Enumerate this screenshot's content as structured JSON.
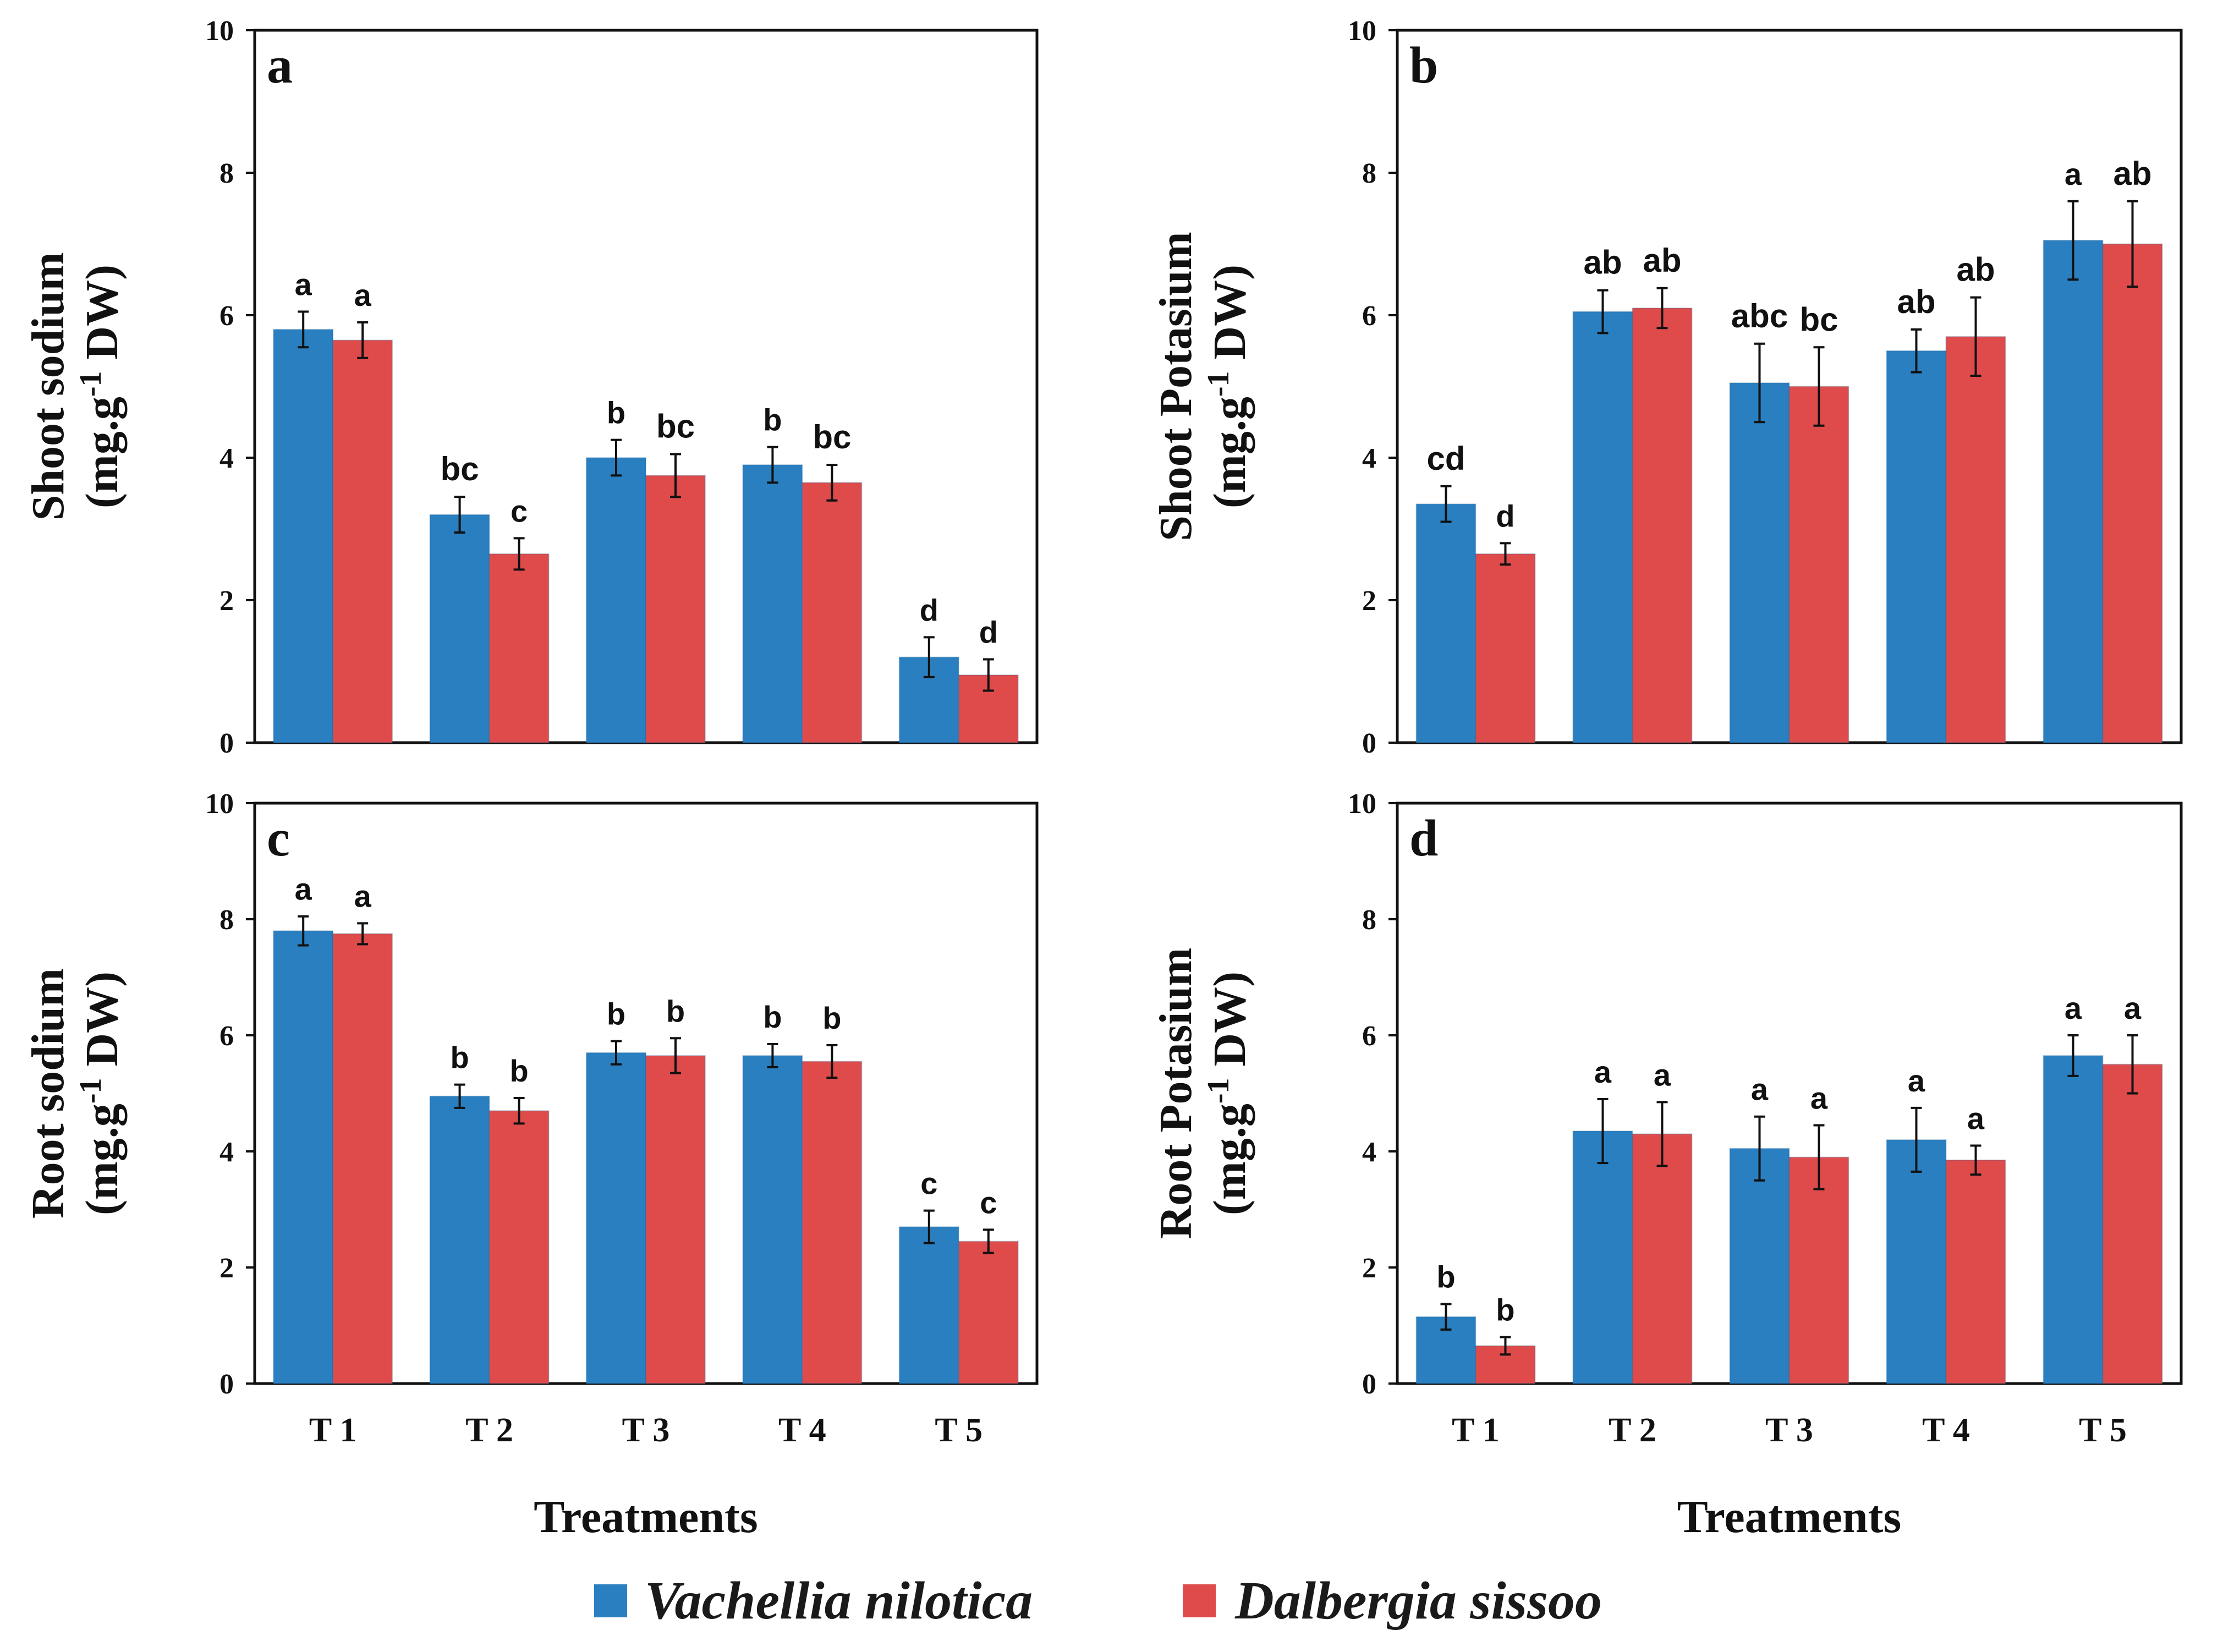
{
  "chart_data": [
    {
      "type": "bar",
      "panel_label": "a",
      "ylabel_main": "Shoot sodium",
      "ylabel_unit": {
        "pre": "(mg.g",
        "sup": "-1",
        "post": " DW)"
      },
      "xlabel": "",
      "ylim": [
        0,
        10
      ],
      "yticks": [
        "0",
        "2",
        "4",
        "6",
        "8",
        "10"
      ],
      "categories": [
        "T 1",
        "T 2",
        "T 3",
        "T 4",
        "T 5"
      ],
      "show_categories": false,
      "series": [
        {
          "name": "Vachellia nilotica",
          "values": [
            5.8,
            3.2,
            4.0,
            3.9,
            1.2
          ],
          "errors": [
            0.25,
            0.25,
            0.25,
            0.25,
            0.28
          ],
          "letters": [
            "a",
            "bc",
            "b",
            "b",
            "d"
          ]
        },
        {
          "name": "Dalbergia sissoo",
          "values": [
            5.65,
            2.65,
            3.75,
            3.65,
            0.95
          ],
          "errors": [
            0.25,
            0.22,
            0.3,
            0.25,
            0.22
          ],
          "letters": [
            "a",
            "c",
            "bc",
            "bc",
            "d"
          ]
        }
      ]
    },
    {
      "type": "bar",
      "panel_label": "b",
      "ylabel_main": "Shoot Potasium",
      "ylabel_unit": {
        "pre": "(mg.g",
        "sup": "-1",
        "post": " DW)"
      },
      "xlabel": "",
      "ylim": [
        0,
        10
      ],
      "yticks": [
        "0",
        "2",
        "4",
        "6",
        "8",
        "10"
      ],
      "categories": [
        "T 1",
        "T 2",
        "T 3",
        "T 4",
        "T 5"
      ],
      "show_categories": false,
      "series": [
        {
          "name": "Vachellia nilotica",
          "values": [
            3.35,
            6.05,
            5.05,
            5.5,
            7.05
          ],
          "errors": [
            0.25,
            0.3,
            0.55,
            0.3,
            0.55
          ],
          "letters": [
            "cd",
            "ab",
            "abc",
            "ab",
            "a"
          ]
        },
        {
          "name": "Dalbergia sissoo",
          "values": [
            2.65,
            6.1,
            5.0,
            5.7,
            7.0
          ],
          "errors": [
            0.15,
            0.28,
            0.55,
            0.55,
            0.6
          ],
          "letters": [
            "d",
            "ab",
            "bc",
            "ab",
            "ab"
          ]
        }
      ]
    },
    {
      "type": "bar",
      "panel_label": "c",
      "ylabel_main": "Root sodium",
      "ylabel_unit": {
        "pre": "(mg.g",
        "sup": "-1",
        "post": " DW)"
      },
      "xlabel": "Treatments",
      "ylim": [
        0,
        10
      ],
      "yticks": [
        "0",
        "2",
        "4",
        "6",
        "8",
        "10"
      ],
      "categories": [
        "T 1",
        "T 2",
        "T 3",
        "T 4",
        "T 5"
      ],
      "show_categories": true,
      "series": [
        {
          "name": "Vachellia nilotica",
          "values": [
            7.8,
            4.95,
            5.7,
            5.65,
            2.7
          ],
          "errors": [
            0.25,
            0.2,
            0.2,
            0.2,
            0.28
          ],
          "letters": [
            "a",
            "b",
            "b",
            "b",
            "c"
          ]
        },
        {
          "name": "Dalbergia sissoo",
          "values": [
            7.75,
            4.7,
            5.65,
            5.55,
            2.45
          ],
          "errors": [
            0.18,
            0.22,
            0.3,
            0.28,
            0.2
          ],
          "letters": [
            "a",
            "b",
            "b",
            "b",
            "c"
          ]
        }
      ]
    },
    {
      "type": "bar",
      "panel_label": "d",
      "ylabel_main": "Root Potasium",
      "ylabel_unit": {
        "pre": "(mg.g",
        "sup": "-1",
        "post": " DW)"
      },
      "xlabel": "Treatments",
      "ylim": [
        0,
        10
      ],
      "yticks": [
        "0",
        "2",
        "4",
        "6",
        "8",
        "10"
      ],
      "categories": [
        "T 1",
        "T 2",
        "T 3",
        "T 4",
        "T 5"
      ],
      "show_categories": true,
      "series": [
        {
          "name": "Vachellia nilotica",
          "values": [
            1.15,
            4.35,
            4.05,
            4.2,
            5.65
          ],
          "errors": [
            0.22,
            0.55,
            0.55,
            0.55,
            0.35
          ],
          "letters": [
            "b",
            "a",
            "a",
            "a",
            "a"
          ]
        },
        {
          "name": "Dalbergia sissoo",
          "values": [
            0.65,
            4.3,
            3.9,
            3.85,
            5.5
          ],
          "errors": [
            0.15,
            0.55,
            0.55,
            0.25,
            0.5
          ],
          "letters": [
            "b",
            "a",
            "a",
            "a",
            "a"
          ]
        }
      ]
    }
  ],
  "legend": {
    "items": [
      {
        "label": "Vachellia nilotica"
      },
      {
        "label": "Dalbergia sissoo"
      }
    ]
  },
  "colors": {
    "series1": "#2a7fc1",
    "series2": "#df4b4b",
    "axis": "#111111",
    "errorbar": "#111111"
  }
}
